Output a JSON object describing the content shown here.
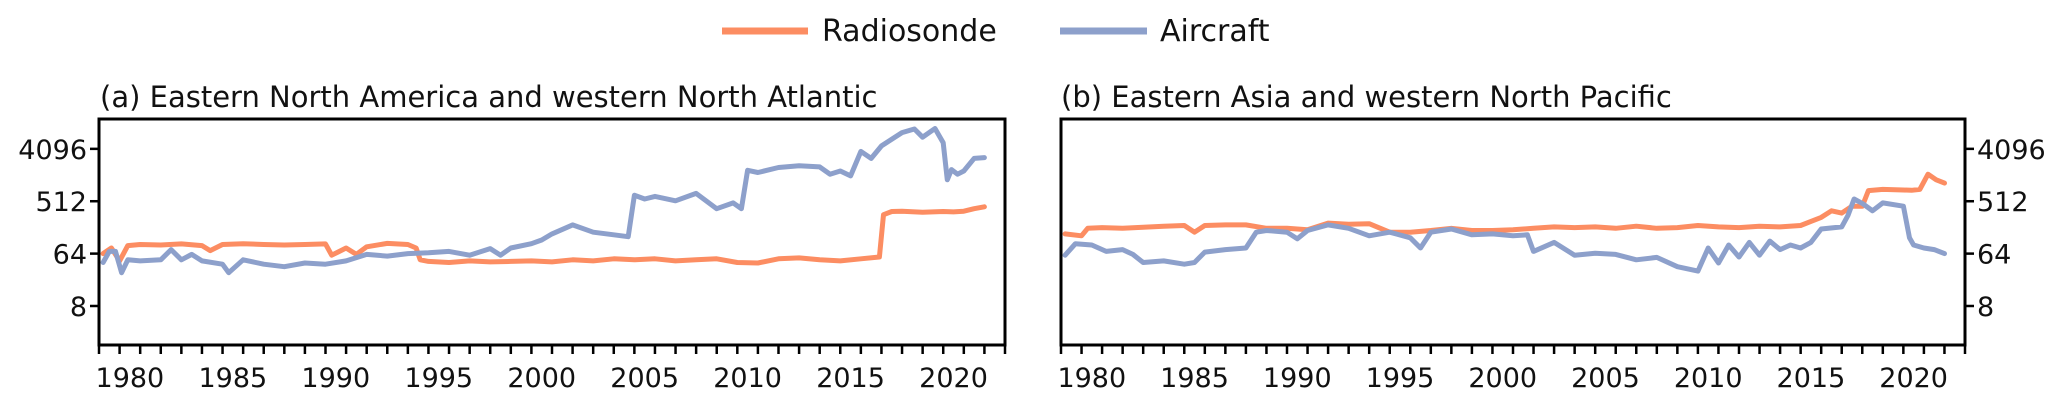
{
  "legend": {
    "items": [
      {
        "label": "Radiosonde",
        "color": "#fc8d62"
      },
      {
        "label": "Aircraft",
        "color": "#8da0cb"
      }
    ]
  },
  "chart_data": [
    {
      "type": "line",
      "title": "(a) Eastern North America and western North Atlantic",
      "xlabel": "",
      "ylabel": "",
      "yscale": "log2",
      "xlim": [
        1979,
        2023
      ],
      "ylim": [
        1.7,
        13400
      ],
      "y_axis_side": "left",
      "x_ticks": [
        1980,
        1985,
        1990,
        1995,
        2000,
        2005,
        2010,
        2015,
        2020
      ],
      "x_tick_labels": [
        "1980",
        "1985",
        "1990",
        "1995",
        "2000",
        "2005",
        "2010",
        "2015",
        "2020"
      ],
      "y_ticks": [
        4096,
        512,
        64,
        8
      ],
      "y_tick_labels": [
        "4096",
        "512",
        "64",
        "8"
      ],
      "grid": false,
      "series": [
        {
          "name": "Radiosonde",
          "color": "#fc8d62",
          "x": [
            1979.2,
            1979.6,
            1980.0,
            1980.4,
            1981,
            1982,
            1983,
            1984,
            1984.4,
            1985,
            1986,
            1987,
            1988,
            1989,
            1990,
            1990.3,
            1990.6,
            1991,
            1991.5,
            1992,
            1993,
            1994,
            1994.4,
            1994.6,
            1995,
            1996,
            1997,
            1998,
            1999,
            2000,
            2001,
            2002,
            2003,
            2004,
            2005,
            2006,
            2007,
            2008,
            2009,
            2010,
            2011,
            2012,
            2013,
            2014,
            2015,
            2016,
            2016.9,
            2017.1,
            2017.5,
            2018,
            2019,
            2020,
            2020.5,
            2021,
            2021.5,
            2022
          ],
          "y": [
            64,
            80,
            48,
            88,
            92,
            90,
            94,
            88,
            72,
            92,
            95,
            92,
            90,
            92,
            94,
            60,
            68,
            80,
            62,
            84,
            96,
            92,
            80,
            50,
            47,
            45,
            48,
            46,
            47,
            48,
            46,
            50,
            48,
            52,
            50,
            52,
            48,
            50,
            52,
            45,
            44,
            52,
            54,
            50,
            48,
            52,
            56,
            300,
            340,
            345,
            330,
            340,
            335,
            345,
            380,
            410
          ]
        },
        {
          "name": "Aircraft",
          "color": "#8da0cb",
          "x": [
            1979.2,
            1979.5,
            1979.8,
            1980.1,
            1980.4,
            1981,
            1982,
            1982.5,
            1983,
            1983.5,
            1984,
            1985,
            1985.3,
            1986,
            1987,
            1988,
            1989,
            1990,
            1991,
            1992,
            1993,
            1994,
            1995,
            1996,
            1997,
            1998,
            1998.5,
            1999,
            2000,
            2000.5,
            2001,
            2002,
            2003,
            2004,
            2004.7,
            2005.0,
            2005.5,
            2006,
            2007,
            2008,
            2009,
            2009.8,
            2010.2,
            2010.5,
            2011,
            2012,
            2013,
            2014,
            2014.5,
            2015,
            2015.5,
            2016,
            2016.5,
            2017,
            2018,
            2018.6,
            2019,
            2019.6,
            2020,
            2020.2,
            2020.4,
            2020.7,
            2021,
            2021.5,
            2022
          ],
          "y": [
            45,
            70,
            70,
            30,
            50,
            48,
            50,
            75,
            50,
            62,
            48,
            42,
            30,
            50,
            42,
            38,
            44,
            42,
            48,
            62,
            58,
            64,
            66,
            70,
            60,
            78,
            60,
            80,
            95,
            110,
            140,
            200,
            150,
            135,
            125,
            650,
            560,
            620,
            520,
            700,
            380,
            480,
            380,
            1750,
            1600,
            1950,
            2100,
            2000,
            1500,
            1700,
            1400,
            3700,
            2800,
            4600,
            7800,
            9000,
            6500,
            9200,
            5200,
            1200,
            1800,
            1500,
            1700,
            2800,
            2900
          ]
        }
      ]
    },
    {
      "type": "line",
      "title": "(b) Eastern Asia and western North Pacific",
      "xlabel": "",
      "ylabel": "",
      "yscale": "log2",
      "xlim": [
        1979,
        2023
      ],
      "ylim": [
        1.7,
        13400
      ],
      "y_axis_side": "right",
      "x_ticks": [
        1980,
        1985,
        1990,
        1995,
        2000,
        2005,
        2010,
        2015,
        2020
      ],
      "x_tick_labels": [
        "1980",
        "1985",
        "1990",
        "1995",
        "2000",
        "2005",
        "2010",
        "2015",
        "2020"
      ],
      "y_ticks": [
        4096,
        512,
        64,
        8
      ],
      "y_tick_labels": [
        "4096",
        "512",
        "64",
        "8"
      ],
      "grid": false,
      "series": [
        {
          "name": "Radiosonde",
          "color": "#fc8d62",
          "x": [
            1979.2,
            1980,
            1980.3,
            1981,
            1982,
            1983,
            1984,
            1985,
            1985.5,
            1986,
            1987,
            1988,
            1989,
            1990,
            1991,
            1992,
            1993,
            1994,
            1995,
            1996,
            1997,
            1998,
            1999,
            2000,
            2001,
            2002,
            2003,
            2004,
            2005,
            2006,
            2007,
            2008,
            2009,
            2010,
            2011,
            2012,
            2013,
            2014,
            2015,
            2015.5,
            2016,
            2016.5,
            2017,
            2017.5,
            2018,
            2018.3,
            2019,
            2020,
            2020.4,
            2020.8,
            2021.2,
            2021.6,
            2022
          ],
          "y": [
            140,
            130,
            175,
            180,
            175,
            182,
            190,
            195,
            150,
            195,
            200,
            200,
            175,
            175,
            165,
            215,
            205,
            210,
            150,
            150,
            160,
            175,
            160,
            160,
            165,
            175,
            185,
            180,
            185,
            175,
            190,
            175,
            180,
            195,
            185,
            180,
            190,
            185,
            195,
            230,
            270,
            350,
            320,
            420,
            420,
            780,
            820,
            800,
            790,
            820,
            1500,
            1200,
            1050
          ]
        },
        {
          "name": "Aircraft",
          "color": "#8da0cb",
          "x": [
            1979.2,
            1979.7,
            1980.5,
            1981.2,
            1982,
            1982.5,
            1983,
            1984,
            1985,
            1985.5,
            1986,
            1987,
            1988,
            1988.5,
            1989,
            1990,
            1990.5,
            1991,
            1992,
            1993,
            1994,
            1995,
            1996,
            1996.5,
            1997,
            1998,
            1999,
            2000,
            2001,
            2001.7,
            2002,
            2003,
            2004,
            2005,
            2006,
            2007,
            2008,
            2009,
            2010,
            2010.5,
            2011,
            2011.5,
            2012,
            2012.5,
            2013,
            2013.5,
            2014,
            2014.5,
            2015,
            2015.5,
            2016,
            2017,
            2017.3,
            2017.6,
            2018,
            2018.5,
            2019,
            2020,
            2020.3,
            2020.5,
            2021,
            2021.5,
            2022
          ],
          "y": [
            60,
            95,
            90,
            70,
            75,
            62,
            45,
            48,
            42,
            45,
            68,
            75,
            80,
            150,
            160,
            150,
            115,
            160,
            200,
            175,
            130,
            150,
            120,
            80,
            150,
            170,
            135,
            140,
            130,
            135,
            70,
            100,
            60,
            65,
            62,
            50,
            55,
            38,
            32,
            80,
            44,
            90,
            56,
            100,
            60,
            105,
            75,
            90,
            80,
            100,
            170,
            185,
            290,
            560,
            470,
            350,
            480,
            420,
            120,
            90,
            80,
            75,
            64
          ]
        }
      ]
    }
  ]
}
